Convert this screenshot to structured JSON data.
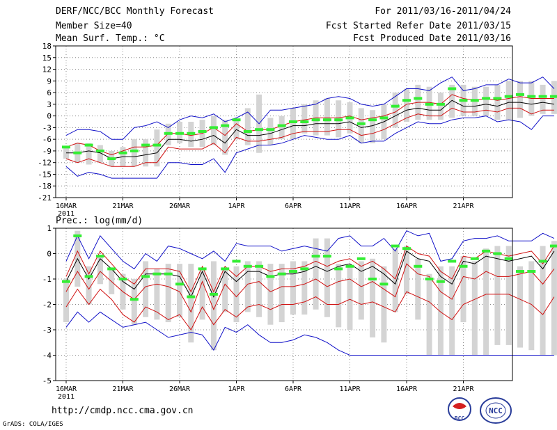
{
  "header": {
    "title": "DERF/NCC/BCC Monthly Forecast",
    "member_size": "Member Size=40",
    "variable": "Mean Surf. Temp.: °C",
    "forecast_period": "For 2011/03/16-2011/04/24",
    "started_refer": "Fcst Started Refer Date 2011/03/15",
    "produced": "Fcst Produced Date 2011/03/16"
  },
  "precip_label": "Prec.: log(mm/d)",
  "footer": {
    "url": "http://cmdp.ncc.cma.gov.cn",
    "credit": "GrADS: COLA/IGES"
  },
  "logos": {
    "bcc": "BCC",
    "ncc": "NCC"
  },
  "colors": {
    "max_min": "#1010c8",
    "spread": "#d01010",
    "mean": "#000000",
    "obs": "#33ee33",
    "box": "#d4d4d4",
    "grid": "#888888"
  },
  "chart_data": [
    {
      "type": "line",
      "title": "Mean Surf. Temp.: °C",
      "x_labels": [
        "16MAR",
        "21MAR",
        "26MAR",
        "1APR",
        "6APR",
        "11APR",
        "16APR",
        "21APR"
      ],
      "x_year": "2011",
      "days": 40,
      "ylim": [
        -21,
        18
      ],
      "yticks": [
        -21,
        -18,
        -15,
        -12,
        -9,
        -6,
        -3,
        0,
        3,
        6,
        9,
        12,
        15,
        18
      ],
      "series": [
        {
          "name": "max",
          "values": [
            -5,
            -3.5,
            -3.5,
            -4,
            -6,
            -6,
            -3,
            -2.5,
            -1.5,
            -3,
            -1,
            0,
            -0.5,
            0.5,
            -1.5,
            -0.5,
            1,
            -2,
            1.5,
            1.5,
            2,
            2.5,
            3,
            4.5,
            5,
            4.5,
            3,
            2.5,
            3,
            5,
            7,
            7,
            6.5,
            8.5,
            10,
            6.5,
            7,
            8,
            8,
            9.5,
            8.5,
            8.5,
            10,
            7
          ]
        },
        {
          "name": "spread_upper",
          "values": [
            -8,
            -7,
            -7.5,
            -9,
            -10,
            -9,
            -8,
            -8,
            -7.5,
            -4.5,
            -4.5,
            -5,
            -4.5,
            -3,
            -5,
            -2,
            -4,
            -3.5,
            -3.5,
            -2.5,
            -1.5,
            -1,
            -0.5,
            -0.5,
            -0.5,
            0,
            -1,
            -0.5,
            0,
            1,
            3,
            3.5,
            3.5,
            3,
            5.5,
            4.5,
            4,
            4.5,
            4,
            4.5,
            5,
            4.5,
            4.5,
            4.5
          ]
        },
        {
          "name": "mean",
          "values": [
            -9.5,
            -9.5,
            -9,
            -9.5,
            -11,
            -10.5,
            -10.5,
            -10,
            -9.5,
            -6,
            -6,
            -6.5,
            -6,
            -5,
            -7,
            -3.5,
            -5,
            -5,
            -4.5,
            -3.5,
            -2.5,
            -2.5,
            -2,
            -2,
            -2,
            -1.5,
            -3,
            -2.5,
            -1.5,
            0,
            1.5,
            2,
            1.5,
            1.5,
            4,
            2.5,
            2.5,
            3,
            2.5,
            3.5,
            3.5,
            3,
            3.5,
            3
          ]
        },
        {
          "name": "spread_lower",
          "values": [
            -11,
            -12,
            -11,
            -12,
            -13,
            -13,
            -13,
            -12,
            -12,
            -8,
            -8.5,
            -8.5,
            -8.5,
            -7,
            -9.5,
            -5.5,
            -6.5,
            -6.5,
            -6,
            -5.5,
            -4.5,
            -4,
            -4,
            -4,
            -3.5,
            -3.5,
            -5,
            -4.5,
            -3.5,
            -2,
            -0.5,
            0.5,
            0,
            0,
            2,
            1,
            1,
            1.5,
            1,
            2,
            2,
            0.5,
            1.5,
            1.5
          ]
        },
        {
          "name": "min",
          "values": [
            -13,
            -15.5,
            -14.5,
            -15,
            -16,
            -16,
            -16,
            -16,
            -16,
            -12,
            -12,
            -12.5,
            -12.5,
            -11,
            -14.5,
            -9.5,
            -8.5,
            -7.5,
            -7.5,
            -7,
            -6,
            -5,
            -5.5,
            -6,
            -6,
            -5,
            -7,
            -6.5,
            -6.5,
            -4.5,
            -3,
            -1.5,
            -2,
            -2,
            -1,
            -0.5,
            -0.5,
            0,
            -1.5,
            -1,
            -1.5,
            -3.5,
            0,
            0
          ]
        },
        {
          "name": "observed",
          "values": [
            -8,
            -9.5,
            -7.5,
            -9,
            -11,
            -9.5,
            -9,
            -7.5,
            -7.5,
            -4.5,
            -4.5,
            -4.5,
            -4,
            -3,
            -2.5,
            -1,
            -4,
            -3.5,
            -3.5,
            -2.5,
            -1.5,
            -1.5,
            -1,
            -1,
            -1,
            -0.5,
            -2,
            -1,
            -0.5,
            2.5,
            4,
            4.5,
            3,
            3,
            7,
            4,
            4,
            4.5,
            4.5,
            5,
            5.5,
            5,
            5,
            5
          ]
        },
        {
          "name": "box_high",
          "values": [
            -8,
            -7,
            -7,
            -7.5,
            -9,
            -8,
            -6,
            -6,
            -3.5,
            -2,
            -1.5,
            -1.5,
            -1,
            0,
            -1,
            -1,
            2,
            5.5,
            -0.5,
            0,
            2,
            3,
            4,
            4.5,
            4,
            3.5,
            2,
            1.5,
            3,
            6,
            7,
            8,
            7.5,
            6,
            8,
            8,
            7.5,
            7.5,
            8,
            9,
            9,
            9,
            8,
            9
          ]
        },
        {
          "name": "box_low",
          "values": [
            -11,
            -12,
            -12.5,
            -12,
            -13,
            -13,
            -13,
            -13,
            -13,
            -7.5,
            -7,
            -8,
            -8,
            -7.5,
            -10,
            -6,
            -7.5,
            -9.5,
            -7.5,
            -6,
            -6,
            -4.5,
            -5,
            -5,
            -5.5,
            -4.5,
            -7,
            -7,
            -6,
            -3,
            -1.5,
            -1,
            -1,
            -1,
            -0.5,
            0,
            0,
            0,
            -1,
            -1,
            -0.5,
            0,
            0.5,
            0.5
          ]
        }
      ]
    },
    {
      "type": "line",
      "title": "Prec.: log(mm/d)",
      "x_labels": [
        "16MAR",
        "21MAR",
        "26MAR",
        "1APR",
        "6APR",
        "11APR",
        "16APR",
        "21APR"
      ],
      "x_year": "2011",
      "days": 40,
      "ylim": [
        -5,
        1
      ],
      "yticks": [
        -5,
        -4,
        -3,
        -2,
        -1,
        0,
        1
      ],
      "series": [
        {
          "name": "max",
          "values": [
            -0.3,
            0.7,
            -0.2,
            0.7,
            0.2,
            -0.3,
            -0.6,
            0,
            -0.3,
            0.3,
            0.2,
            0,
            -0.2,
            0.1,
            -0.3,
            0.4,
            0.3,
            0.3,
            0.3,
            0.1,
            0.2,
            0.3,
            0.2,
            0.1,
            0.6,
            0.7,
            0.3,
            0.3,
            0.6,
            0.1,
            0.9,
            0.7,
            0.8,
            -0.3,
            -0.2,
            0.5,
            0.6,
            0.6,
            0.7,
            0.5,
            0.5,
            0.5,
            0.8,
            0.6
          ]
        },
        {
          "name": "spread_upper",
          "values": [
            -0.9,
            0.1,
            -0.8,
            0.1,
            -0.4,
            -0.9,
            -1.2,
            -0.6,
            -0.6,
            -0.6,
            -0.7,
            -1.5,
            -0.5,
            -1.5,
            -0.5,
            -0.9,
            -0.5,
            -0.5,
            -0.7,
            -0.6,
            -0.6,
            -0.5,
            -0.3,
            -0.5,
            -0.3,
            -0.2,
            -0.5,
            -0.3,
            -0.6,
            -1,
            0.3,
            0,
            -0.1,
            -0.7,
            -1,
            -0.1,
            -0.2,
            0.1,
            0,
            -0.1,
            0,
            0.1,
            -0.4,
            0.3
          ]
        },
        {
          "name": "mean",
          "values": [
            -1.1,
            -0.2,
            -1,
            -0.2,
            -0.6,
            -1.1,
            -1.4,
            -0.8,
            -0.8,
            -0.8,
            -0.9,
            -1.7,
            -0.7,
            -1.7,
            -0.7,
            -1.1,
            -0.7,
            -0.7,
            -0.9,
            -0.8,
            -0.8,
            -0.7,
            -0.5,
            -0.7,
            -0.5,
            -0.4,
            -0.7,
            -0.5,
            -0.8,
            -1.2,
            0.1,
            -0.2,
            -0.3,
            -0.9,
            -1.2,
            -0.3,
            -0.4,
            -0.1,
            -0.2,
            -0.3,
            -0.2,
            -0.1,
            -0.6,
            0.1
          ]
        },
        {
          "name": "spread_lower",
          "values": [
            -1.5,
            -0.7,
            -1.4,
            -0.7,
            -1.1,
            -1.5,
            -1.8,
            -1.3,
            -1.2,
            -1.3,
            -1.5,
            -2.3,
            -1.1,
            -2.2,
            -1.2,
            -1.7,
            -1.2,
            -1.1,
            -1.5,
            -1.3,
            -1.3,
            -1.2,
            -1,
            -1.3,
            -1.1,
            -1,
            -1.3,
            -1.1,
            -1.4,
            -1.7,
            -0.4,
            -0.8,
            -0.9,
            -1.5,
            -1.8,
            -0.9,
            -1,
            -0.7,
            -0.9,
            -0.9,
            -0.8,
            -0.7,
            -1.2,
            -0.6
          ]
        },
        {
          "name": "spread_lower2",
          "values": [
            -2.1,
            -1.4,
            -2,
            -1.4,
            -1.8,
            -2.4,
            -2.7,
            -2.1,
            -2.3,
            -2.6,
            -2.4,
            -3,
            -2.1,
            -2.8,
            -2.2,
            -2.5,
            -2.1,
            -2,
            -2.2,
            -2,
            -2,
            -1.9,
            -1.7,
            -2,
            -2,
            -1.8,
            -2,
            -1.9,
            -2.1,
            -2.3,
            -1.5,
            -1.7,
            -1.9,
            -2.3,
            -2.6,
            -2,
            -1.8,
            -1.6,
            -1.6,
            -1.6,
            -1.8,
            -2,
            -2.4,
            -1.7
          ]
        },
        {
          "name": "min",
          "values": [
            -2.9,
            -2.3,
            -2.7,
            -2.3,
            -2.6,
            -2.9,
            -2.8,
            -2.7,
            -3,
            -3.3,
            -3.2,
            -3.1,
            -3.2,
            -3.8,
            -2.9,
            -3.1,
            -2.8,
            -3.2,
            -3.5,
            -3.5,
            -3.4,
            -3.2,
            -3.3,
            -3.5,
            -3.8,
            -4,
            -4,
            -4,
            -4,
            -4,
            -4,
            -4,
            -4,
            -4,
            -4,
            -4,
            -4,
            -4,
            -4,
            -4,
            -4,
            -4,
            -4,
            -4
          ]
        },
        {
          "name": "observed",
          "values": [
            -1.1,
            0.7,
            -0.9,
            -0.1,
            -0.6,
            -1,
            -1.8,
            -0.9,
            -0.8,
            -0.8,
            -1.2,
            -1.7,
            -0.6,
            -1.6,
            -0.6,
            -0.3,
            -0.5,
            -0.5,
            -0.9,
            -0.8,
            -0.7,
            -0.6,
            -0.1,
            -0.1,
            -0.6,
            -0.5,
            -0.2,
            -1,
            -1.2,
            0.3,
            0.2,
            -0.5,
            -1,
            -1.1,
            -0.3,
            -0.5,
            -0.2,
            0.1,
            0,
            -0.2,
            -0.7,
            -0.7,
            -0.3,
            0.3
          ]
        },
        {
          "name": "box_high",
          "values": [
            -1,
            0.9,
            -0.5,
            -0.1,
            -0.6,
            -0.8,
            -1,
            -0.3,
            -0.6,
            -0.4,
            -0.4,
            -0.4,
            -0.6,
            -0.3,
            -0.6,
            -0.5,
            -0.3,
            -0.3,
            -0.4,
            -0.4,
            -0.3,
            -0.3,
            0.6,
            0.6,
            -0.4,
            -0.5,
            -0.3,
            -0.2,
            -0.5,
            0.2,
            0.3,
            -0.2,
            -0.8,
            -0.5,
            -0.5,
            -0.1,
            -0.3,
            0.2,
            0.3,
            0.3,
            -0.5,
            -0.3,
            0.3,
            0.5
          ]
        },
        {
          "name": "box_low",
          "values": [
            -2.7,
            -1.3,
            -2,
            -1.2,
            -1.6,
            -2.2,
            -2.8,
            -2.5,
            -2.6,
            -2.7,
            -2.5,
            -3.5,
            -2.6,
            -3.8,
            -2.3,
            -2.7,
            -2.3,
            -2.5,
            -2.8,
            -2.7,
            -2.4,
            -2.4,
            -2.2,
            -2.5,
            -2.9,
            -3,
            -2.6,
            -3.3,
            -3.5,
            -2.3,
            -1.6,
            -2.6,
            -4,
            -4,
            -4,
            -2.7,
            -4,
            -4,
            -3.6,
            -3.6,
            -3.7,
            -3.8,
            -4,
            -4
          ]
        }
      ]
    }
  ]
}
